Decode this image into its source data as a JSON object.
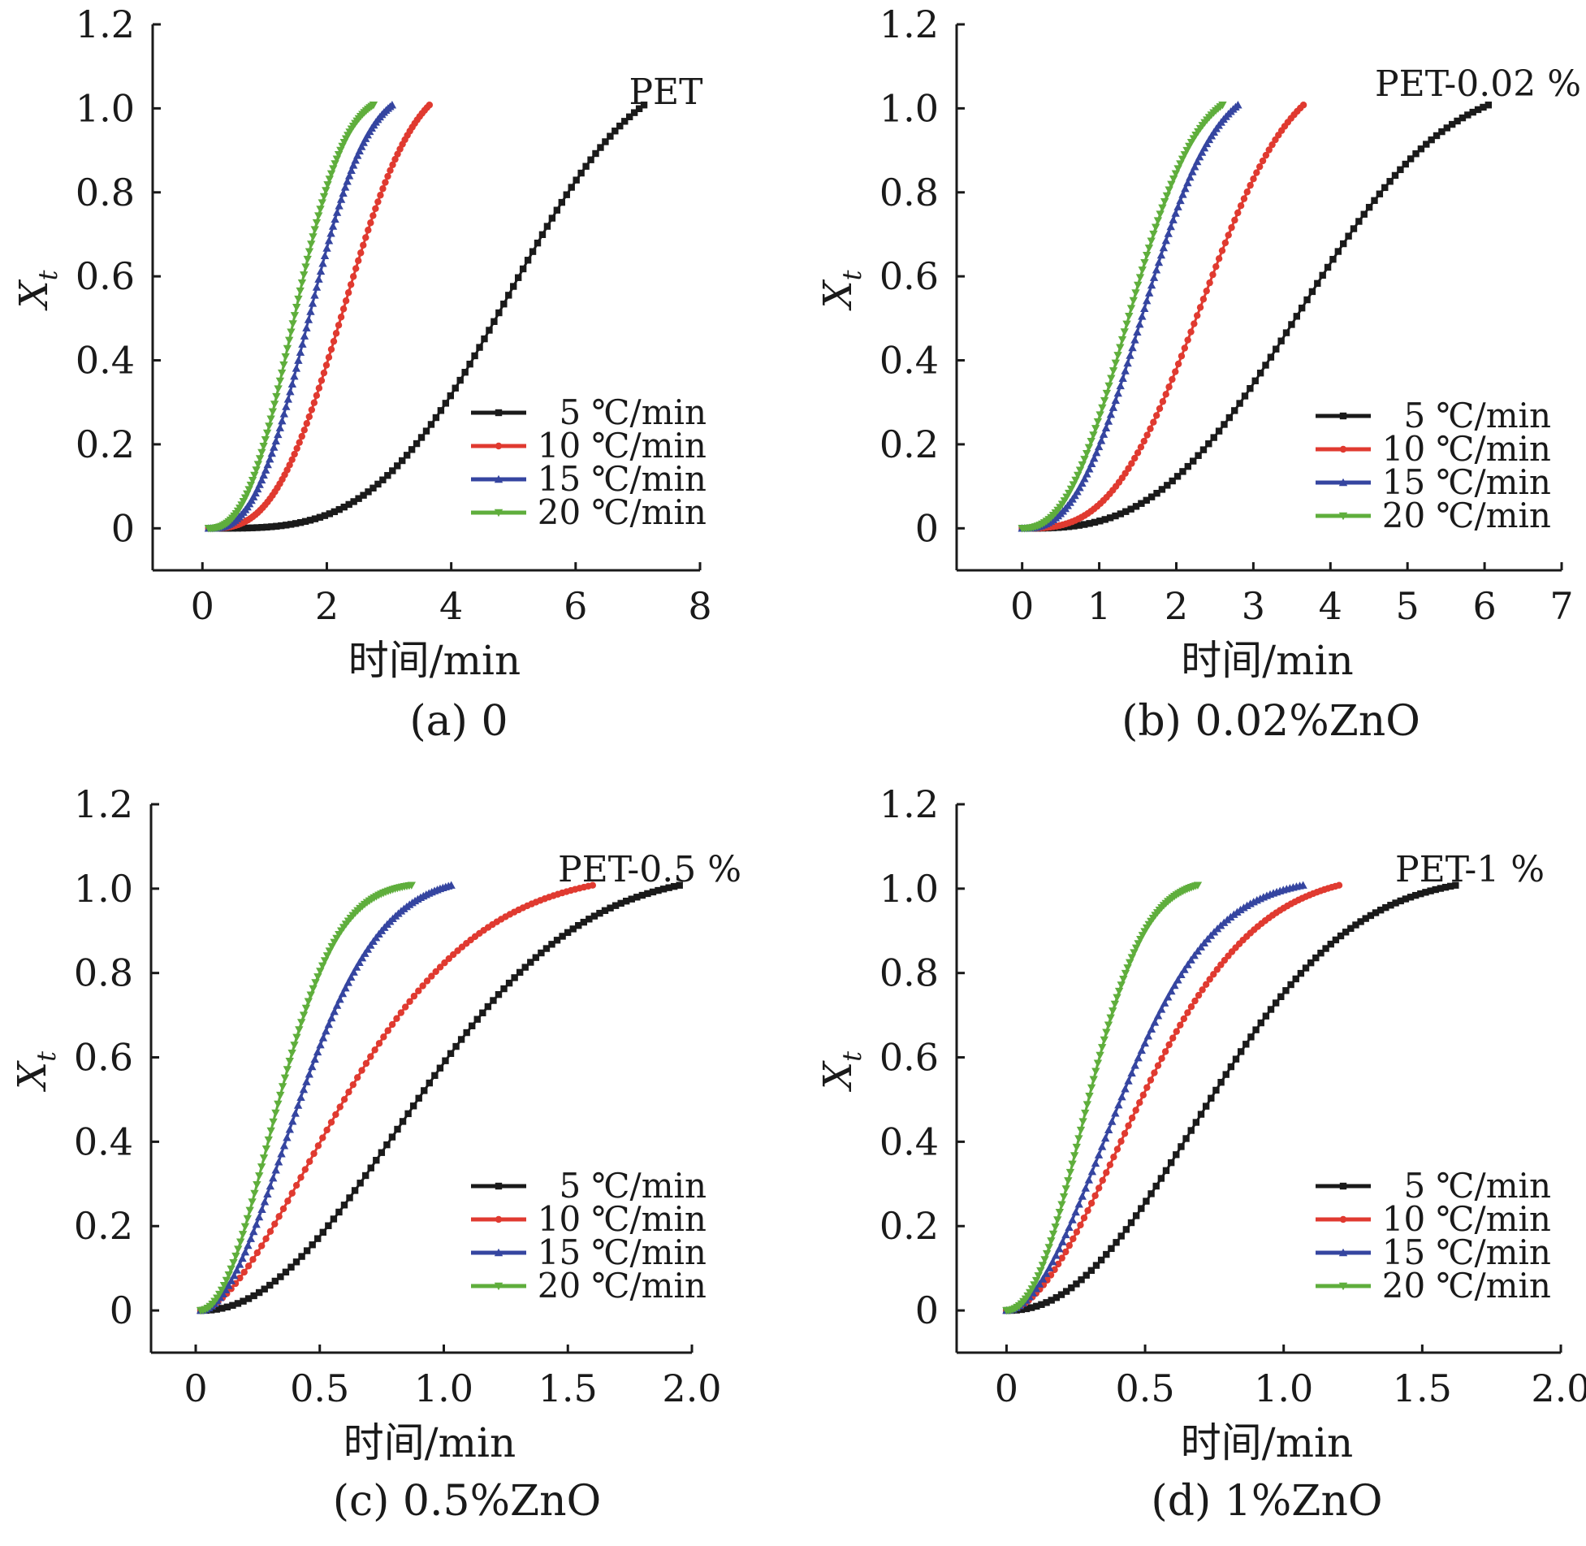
{
  "chart_data": [
    {
      "type": "line",
      "panel": "a",
      "title": "PET",
      "caption": "(a) 0",
      "xlabel": "时间/min",
      "ylabel": "X",
      "ylabel_sub": "t",
      "xlim": [
        -0.8,
        8
      ],
      "ylim": [
        -0.1,
        1.2
      ],
      "xticks": [
        0,
        2,
        4,
        6,
        8
      ],
      "xtick_labels": [
        "0",
        "2",
        "4",
        "6",
        "8"
      ],
      "yticks": [
        0,
        0.2,
        0.4,
        0.6,
        0.8,
        1.0,
        1.2
      ],
      "ytick_labels": [
        "0",
        "0.2",
        "0.4",
        "0.6",
        "0.8",
        "1.0",
        "1.2"
      ],
      "legend": [
        "5 ℃/min",
        "10 ℃/min",
        "15 ℃/min",
        "20 ℃/min"
      ],
      "legend_position": "lower-right",
      "series": [
        {
          "name": "5 ℃/min",
          "color": "#1a1a1a",
          "marker": "square",
          "t0": 0.1,
          "t1": 7.1,
          "t50": 4.9,
          "n": 3.4
        },
        {
          "name": "10 ℃/min",
          "color": "#e03a30",
          "marker": "circle",
          "t0": 0.1,
          "t1": 3.65,
          "t50": 2.3,
          "n": 2.9
        },
        {
          "name": "15 ℃/min",
          "color": "#3545a0",
          "marker": "triangle-up",
          "t0": 0.1,
          "t1": 3.05,
          "t50": 1.75,
          "n": 2.7
        },
        {
          "name": "20 ℃/min",
          "color": "#5fae3c",
          "marker": "triangle-down",
          "t0": 0.1,
          "t1": 2.75,
          "t50": 1.5,
          "n": 2.6
        }
      ]
    },
    {
      "type": "line",
      "panel": "b",
      "title": "PET-0.02 %",
      "caption": "(b) 0.02%ZnO",
      "xlabel": "时间/min",
      "ylabel": "X",
      "ylabel_sub": "t",
      "xlim": [
        -0.85,
        7
      ],
      "ylim": [
        -0.1,
        1.2
      ],
      "xticks": [
        0,
        1,
        2,
        3,
        4,
        5,
        6,
        7
      ],
      "xtick_labels": [
        "0",
        "1",
        "2",
        "3",
        "4",
        "5",
        "6",
        "7"
      ],
      "yticks": [
        0,
        0.2,
        0.4,
        0.6,
        0.8,
        1.0,
        1.2
      ],
      "ytick_labels": [
        "0",
        "0.2",
        "0.4",
        "0.6",
        "0.8",
        "1.0",
        "1.2"
      ],
      "legend": [
        "5 ℃/min",
        "10 ℃/min",
        "15 ℃/min",
        "20 ℃/min"
      ],
      "legend_position": "lower-right",
      "series": [
        {
          "name": "5 ℃/min",
          "color": "#1a1a1a",
          "marker": "square",
          "t0": 0.0,
          "t1": 6.05,
          "t50": 3.65,
          "n": 2.9
        },
        {
          "name": "10 ℃/min",
          "color": "#e03a30",
          "marker": "circle",
          "t0": 0.0,
          "t1": 3.65,
          "t50": 2.35,
          "n": 3.0
        },
        {
          "name": "15 ℃/min",
          "color": "#3545a0",
          "marker": "triangle-up",
          "t0": 0.0,
          "t1": 2.8,
          "t50": 1.6,
          "n": 2.6
        },
        {
          "name": "20 ℃/min",
          "color": "#5fae3c",
          "marker": "triangle-down",
          "t0": 0.0,
          "t1": 2.6,
          "t50": 1.42,
          "n": 2.5
        }
      ]
    },
    {
      "type": "line",
      "panel": "c",
      "title": "PET-0.5 %",
      "caption": "(c) 0.5%ZnO",
      "xlabel": "时间/min",
      "ylabel": "X",
      "ylabel_sub": "t",
      "xlim": [
        -0.18,
        2.0
      ],
      "ylim": [
        -0.1,
        1.2
      ],
      "xticks": [
        0,
        0.5,
        1.0,
        1.5,
        2.0
      ],
      "xtick_labels": [
        "0",
        "0.5",
        "1.0",
        "1.5",
        "2.0"
      ],
      "yticks": [
        0,
        0.2,
        0.4,
        0.6,
        0.8,
        1.0,
        1.2
      ],
      "ytick_labels": [
        "0",
        "0.2",
        "0.4",
        "0.6",
        "0.8",
        "1.0",
        "1.2"
      ],
      "legend": [
        "5 ℃/min",
        "10 ℃/min",
        "15 ℃/min",
        "20 ℃/min"
      ],
      "legend_position": "lower-right",
      "series": [
        {
          "name": "5 ℃/min",
          "color": "#1a1a1a",
          "marker": "square",
          "t0": 0.02,
          "t1": 1.95,
          "t50": 0.92,
          "n": 2.1
        },
        {
          "name": "10 ℃/min",
          "color": "#e03a30",
          "marker": "circle",
          "t0": 0.02,
          "t1": 1.6,
          "t50": 0.62,
          "n": 1.65
        },
        {
          "name": "15 ℃/min",
          "color": "#3545a0",
          "marker": "triangle-up",
          "t0": 0.02,
          "t1": 1.03,
          "t50": 0.43,
          "n": 1.9
        },
        {
          "name": "20 ℃/min",
          "color": "#5fae3c",
          "marker": "triangle-down",
          "t0": 0.02,
          "t1": 0.87,
          "t50": 0.34,
          "n": 2.0
        }
      ]
    },
    {
      "type": "line",
      "panel": "d",
      "title": "PET-1 %",
      "caption": "(d) 1%ZnO",
      "xlabel": "时间/min",
      "ylabel": "X",
      "ylabel_sub": "t",
      "xlim": [
        -0.18,
        2.0
      ],
      "ylim": [
        -0.1,
        1.2
      ],
      "xticks": [
        0,
        0.5,
        1.0,
        1.5,
        2.0
      ],
      "xtick_labels": [
        "0",
        "0.5",
        "1.0",
        "1.5",
        "2.0"
      ],
      "yticks": [
        0,
        0.2,
        0.4,
        0.6,
        0.8,
        1.0,
        1.2
      ],
      "ytick_labels": [
        "0",
        "0.2",
        "0.4",
        "0.6",
        "0.8",
        "1.0",
        "1.2"
      ],
      "legend": [
        "5 ℃/min",
        "10 ℃/min",
        "15 ℃/min",
        "20 ℃/min"
      ],
      "legend_position": "lower-right",
      "series": [
        {
          "name": "5 ℃/min",
          "color": "#1a1a1a",
          "marker": "square",
          "t0": 0.0,
          "t1": 1.62,
          "t50": 0.75,
          "n": 2.2
        },
        {
          "name": "10 ℃/min",
          "color": "#e03a30",
          "marker": "circle",
          "t0": 0.0,
          "t1": 1.2,
          "t50": 0.5,
          "n": 1.85
        },
        {
          "name": "15 ℃/min",
          "color": "#3545a0",
          "marker": "triangle-up",
          "t0": 0.0,
          "t1": 1.07,
          "t50": 0.42,
          "n": 1.9
        },
        {
          "name": "20 ℃/min",
          "color": "#5fae3c",
          "marker": "triangle-down",
          "t0": 0.0,
          "t1": 0.69,
          "t50": 0.3,
          "n": 2.2
        }
      ]
    }
  ]
}
